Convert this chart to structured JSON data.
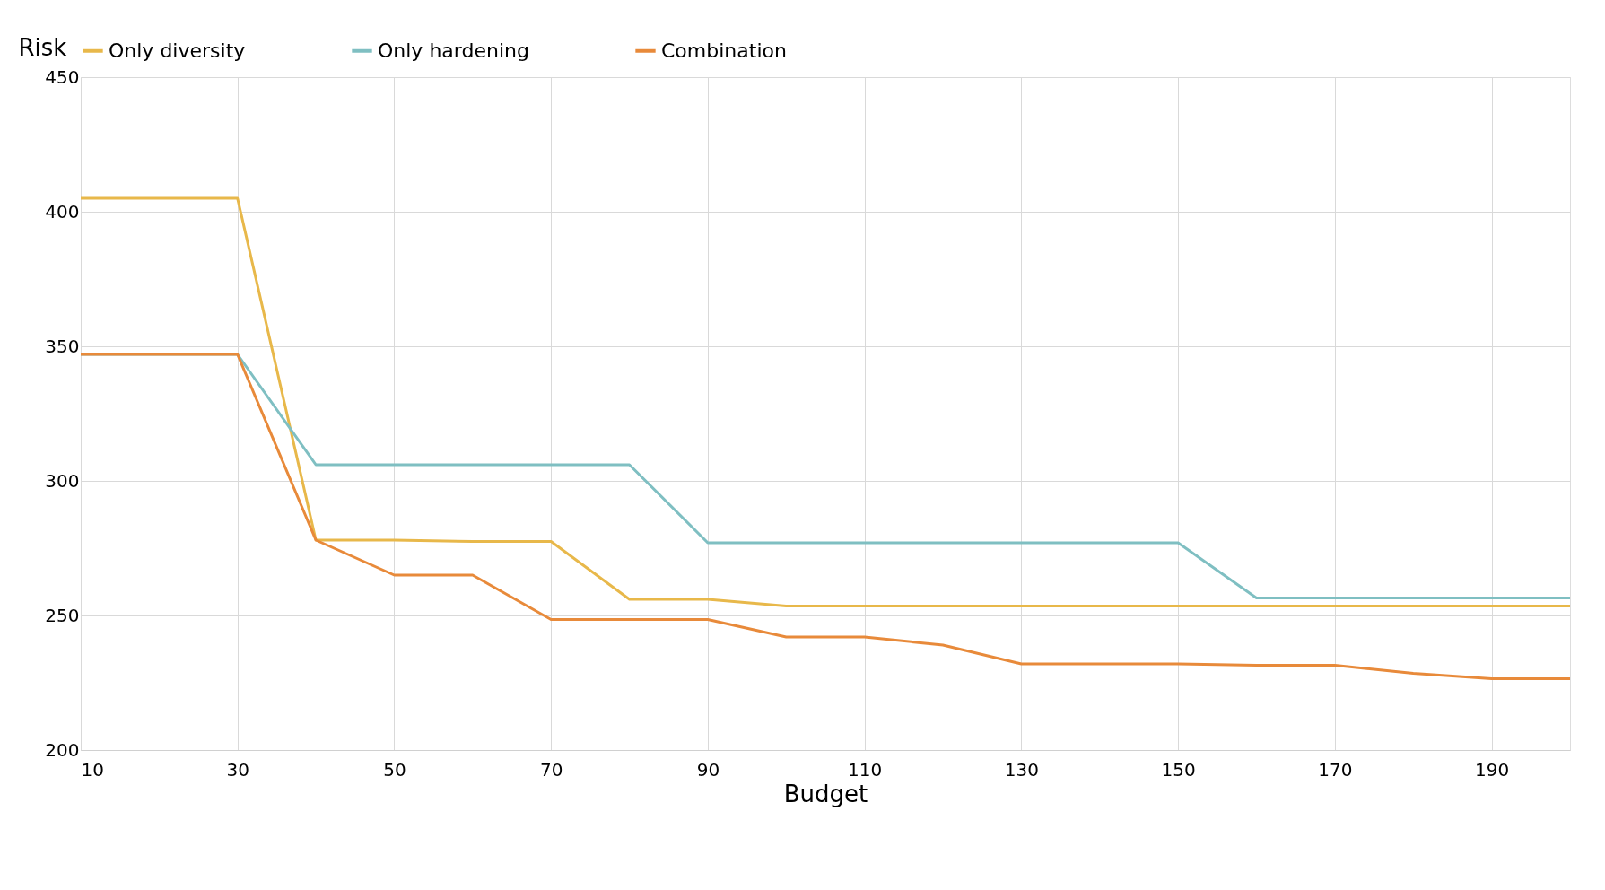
{
  "chart_data": {
    "type": "line",
    "xlabel": "Budget",
    "ylabel": "Risk",
    "x": [
      10,
      20,
      30,
      40,
      50,
      60,
      70,
      80,
      90,
      100,
      110,
      120,
      130,
      140,
      150,
      160,
      170,
      180,
      190,
      200
    ],
    "series": [
      {
        "name": "Only diversity",
        "color": "#e8b84a",
        "values": [
          405,
          405,
          405,
          278,
          278,
          277.5,
          277.5,
          256,
          256,
          253.5,
          253.5,
          253.5,
          253.5,
          253.5,
          253.5,
          253.5,
          253.5,
          253.5,
          253.5,
          253.5
        ]
      },
      {
        "name": "Only hardening",
        "color": "#7fbfc2",
        "values": [
          347,
          347,
          347,
          306,
          306,
          306,
          306,
          306,
          277,
          277,
          277,
          277,
          277,
          277,
          277,
          256.5,
          256.5,
          256.5,
          256.5,
          256.5
        ]
      },
      {
        "name": "Combination",
        "color": "#e88a3a",
        "values": [
          347,
          347,
          347,
          278,
          265,
          265,
          248.5,
          248.5,
          248.5,
          242,
          242,
          239,
          232,
          232,
          232,
          231.5,
          231.5,
          228.5,
          226.5,
          226.5
        ]
      }
    ],
    "xlim": [
      10,
      200
    ],
    "xticks": [
      10,
      30,
      50,
      70,
      90,
      110,
      130,
      150,
      170,
      190
    ],
    "ylim": [
      200,
      450
    ],
    "yticks": [
      200,
      250,
      300,
      350,
      400,
      450
    ],
    "grid": true,
    "legend": "top",
    "marker": "none",
    "line_style": "solid"
  }
}
